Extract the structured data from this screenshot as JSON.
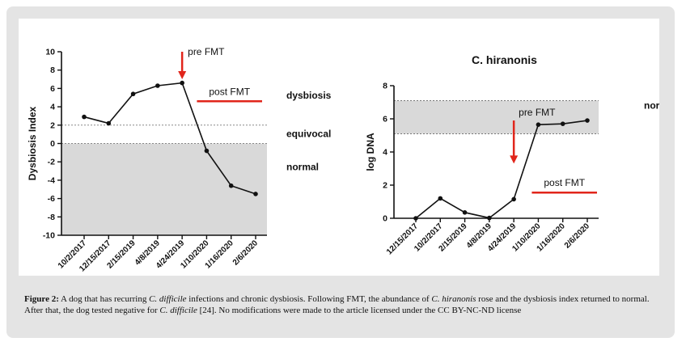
{
  "colors": {
    "frame": "#e4e4e4",
    "line": "#111111",
    "arrow": "#e1251b",
    "band": "#d9d9d9"
  },
  "chart_data": [
    {
      "type": "line",
      "title": "",
      "xlabel": "",
      "ylabel": "Dysbiosis Index",
      "ylim": [
        -10,
        10
      ],
      "yticks": [
        -10,
        -8,
        -6,
        -4,
        -2,
        0,
        2,
        4,
        6,
        8,
        10
      ],
      "categories": [
        "10/2/2017",
        "12/15/2017",
        "2/15/2019",
        "4/8/2019",
        "4/24/2019",
        "1/10/2020",
        "1/16/2020",
        "2/6/2020"
      ],
      "series": [
        {
          "name": "Dysbiosis Index",
          "values": [
            2.9,
            2.2,
            5.4,
            6.3,
            6.6,
            -0.8,
            -4.6,
            -5.5
          ]
        }
      ],
      "grid": false,
      "shaded_region": {
        "from": -10,
        "to": 0,
        "label": "normal"
      },
      "reference_lines": [
        {
          "value": 0,
          "style": "dotted"
        },
        {
          "value": 2,
          "style": "dotted"
        }
      ],
      "zone_labels": {
        "dysbiosis": "dysbiosis",
        "equivocal": "equivocal",
        "normal": "normal"
      },
      "annotations": {
        "pre_fmt": {
          "text": "pre FMT",
          "category": "4/24/2019",
          "y_from": 10,
          "y_to": 7
        },
        "post_fmt": {
          "text": "post FMT",
          "x_from": "1/10/2020",
          "x_to": "2/6/2020",
          "y": 4.6
        }
      }
    },
    {
      "type": "line",
      "title": "C. hiranonis",
      "xlabel": "",
      "ylabel": "log DNA",
      "ylim": [
        0,
        8
      ],
      "yticks": [
        0,
        2,
        4,
        6,
        8
      ],
      "categories": [
        "12/15/2017",
        "10/2/2017",
        "2/15/2019",
        "4/8/2019",
        "4/24/2019",
        "1/10/2020",
        "1/16/2020",
        "2/6/2020"
      ],
      "series": [
        {
          "name": "C. hiranonis",
          "values": [
            0,
            1.2,
            0.35,
            0.02,
            1.15,
            5.65,
            5.7,
            5.9
          ]
        }
      ],
      "grid": false,
      "shaded_region": {
        "from": 5.1,
        "to": 7.1,
        "label": "normal"
      },
      "annotations": {
        "pre_fmt": {
          "text": "pre FMT",
          "category": "4/24/2019",
          "y_from": 5.9,
          "y_to": 3.3
        },
        "post_fmt": {
          "text": "post FMT",
          "x_from": "1/10/2020",
          "x_to": "2/6/2020",
          "y": 1.55
        }
      }
    }
  ],
  "caption": {
    "label": "Figure 2:",
    "text_parts": [
      " A dog that has recurring ",
      "C. difficile",
      " infections and chronic dysbiosis. Following FMT, the abundance of ",
      "C. hiranonis",
      " rose and the dysbiosis index returned to normal. After that, the dog tested negative for ",
      "C. difficile",
      " [24]. No modifications were made to the article licensed under the CC BY-NC-ND license"
    ]
  }
}
